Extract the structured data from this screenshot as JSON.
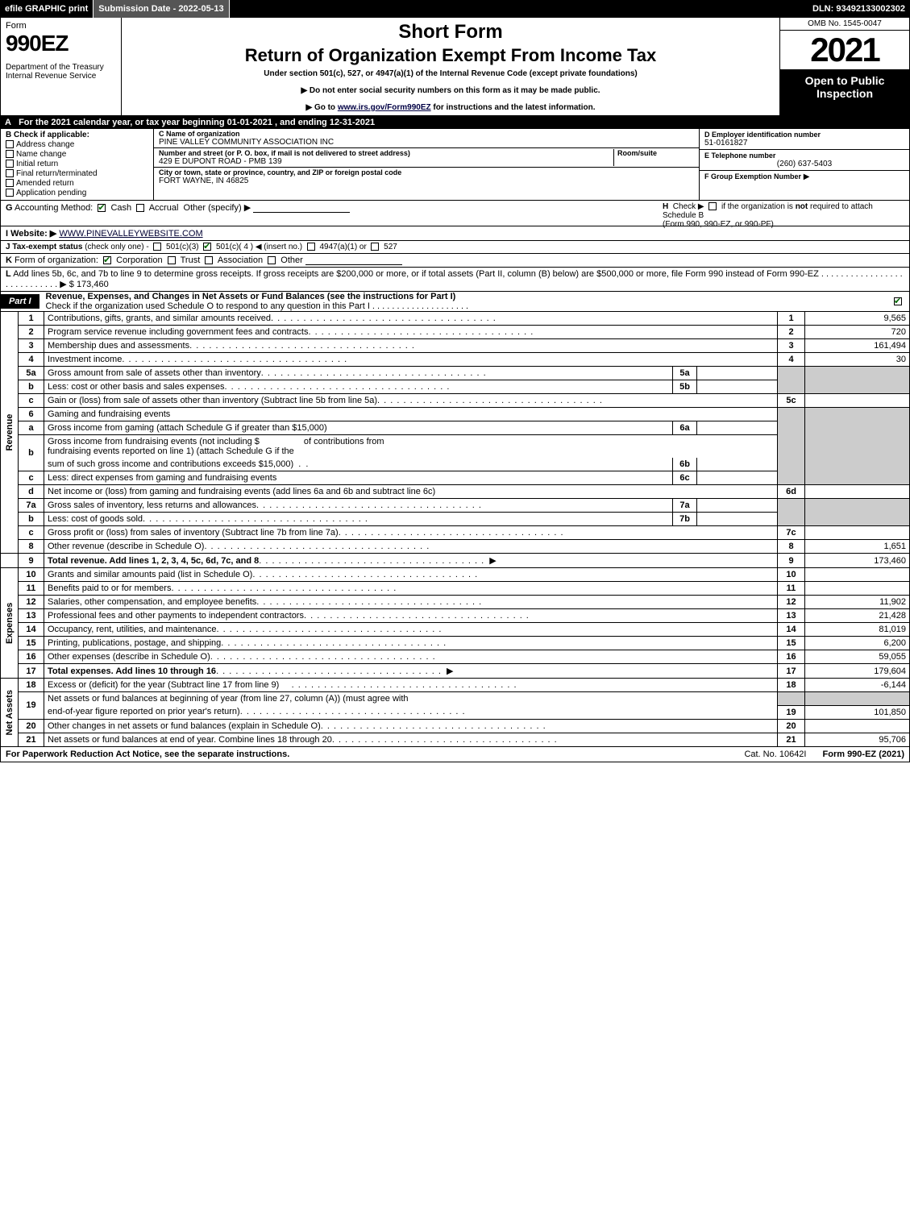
{
  "topbar": {
    "efile": "efile GRAPHIC print",
    "submission_label": "Submission Date - 2022-05-13",
    "dln": "DLN: 93492133002302"
  },
  "header": {
    "form_word": "Form",
    "form_number": "990EZ",
    "department": "Department of the Treasury\nInternal Revenue Service",
    "short_form": "Short Form",
    "return_title": "Return of Organization Exempt From Income Tax",
    "under_section": "Under section 501(c), 527, or 4947(a)(1) of the Internal Revenue Code (except private foundations)",
    "note1_prefix": "▶ Do not enter social security numbers on this form as it may be made public.",
    "note2_prefix": "▶ Go to ",
    "note2_link": "www.irs.gov/Form990EZ",
    "note2_suffix": " for instructions and the latest information.",
    "omb": "OMB No. 1545-0047",
    "year": "2021",
    "open": "Open to Public Inspection"
  },
  "rowA": {
    "label": "A",
    "text": "For the 2021 calendar year, or tax year beginning 01-01-2021 , and ending 12-31-2021"
  },
  "sectionB": {
    "label": "B",
    "heading": "Check if applicable:",
    "items": [
      {
        "label": "Address change",
        "checked": false
      },
      {
        "label": "Name change",
        "checked": false
      },
      {
        "label": "Initial return",
        "checked": false
      },
      {
        "label": "Final return/terminated",
        "checked": false
      },
      {
        "label": "Amended return",
        "checked": false
      },
      {
        "label": "Application pending",
        "checked": false
      }
    ]
  },
  "sectionC": {
    "name_label": "C Name of organization",
    "name_value": "PINE VALLEY COMMUNITY ASSOCIATION INC",
    "addr_label": "Number and street (or P. O. box, if mail is not delivered to street address)",
    "room_label": "Room/suite",
    "addr_value": "429 E DUPONT ROAD - PMB 139",
    "city_label": "City or town, state or province, country, and ZIP or foreign postal code",
    "city_value": "FORT WAYNE, IN  46825"
  },
  "sectionD": {
    "label": "D Employer identification number",
    "value": "51-0161827"
  },
  "sectionE": {
    "label": "E Telephone number",
    "value": "(260) 637-5403"
  },
  "sectionF": {
    "label": "F Group Exemption Number",
    "arrow": "▶"
  },
  "rowG": {
    "label": "G",
    "text": "Accounting Method:",
    "cash": "Cash",
    "accrual": "Accrual",
    "other": "Other (specify) ▶"
  },
  "rowH": {
    "label": "H",
    "text1": "Check ▶",
    "text2": "if the organization is ",
    "text2b": "not",
    "text3": " required to attach Schedule B",
    "text4": "(Form 990, 990-EZ, or 990-PF)."
  },
  "rowI": {
    "label": "I Website: ▶",
    "value": "WWW.PINEVALLEYWEBSITE.COM"
  },
  "rowJ": {
    "label": "J Tax-exempt status",
    "note": "(check only one) -",
    "opt1": "501(c)(3)",
    "opt2": "501(c)( 4 ) ◀ (insert no.)",
    "opt3": "4947(a)(1) or",
    "opt4": "527"
  },
  "rowK": {
    "label": "K",
    "text": "Form of organization:",
    "opts": [
      "Corporation",
      "Trust",
      "Association",
      "Other"
    ],
    "checked_index": 0
  },
  "rowL": {
    "label": "L",
    "text": "Add lines 5b, 6c, and 7b to line 9 to determine gross receipts. If gross receipts are $200,000 or more, or if total assets (Part II, column (B) below) are $500,000 or more, file Form 990 instead of Form 990-EZ .  .  .  .  .  .  .  .  .  .  .  .  .  .  .  .  .  .  .  .  .  .  .  .  .  .  .  .  ▶ $",
    "value": "173,460"
  },
  "part1": {
    "tab": "Part I",
    "title": "Revenue, Expenses, and Changes in Net Assets or Fund Balances (see the instructions for Part I)",
    "subtitle": "Check if the organization used Schedule O to respond to any question in this Part I .  .  .  .  .  .  .  .  .  .  .  .  .  .  .  .  .  .  .  .",
    "sub_checked": true
  },
  "sections": {
    "revenue_label": "Revenue",
    "expenses_label": "Expenses",
    "netassets_label": "Net Assets"
  },
  "lines": {
    "l1": {
      "n": "1",
      "desc": "Contributions, gifts, grants, and similar amounts received",
      "rn": "1",
      "val": "9,565"
    },
    "l2": {
      "n": "2",
      "desc": "Program service revenue including government fees and contracts",
      "rn": "2",
      "val": "720"
    },
    "l3": {
      "n": "3",
      "desc": "Membership dues and assessments",
      "rn": "3",
      "val": "161,494"
    },
    "l4": {
      "n": "4",
      "desc": "Investment income",
      "rn": "4",
      "val": "30"
    },
    "l5a": {
      "n": "5a",
      "desc": "Gross amount from sale of assets other than inventory",
      "sub": "5a",
      "subval": ""
    },
    "l5b": {
      "n": "b",
      "desc": "Less: cost or other basis and sales expenses",
      "sub": "5b",
      "subval": ""
    },
    "l5c": {
      "n": "c",
      "desc": "Gain or (loss) from sale of assets other than inventory (Subtract line 5b from line 5a)",
      "rn": "5c",
      "val": ""
    },
    "l6": {
      "n": "6",
      "desc": "Gaming and fundraising events"
    },
    "l6a": {
      "n": "a",
      "desc": "Gross income from gaming (attach Schedule G if greater than $15,000)",
      "sub": "6a",
      "subval": ""
    },
    "l6b": {
      "n": "b",
      "desc_pre": "Gross income from fundraising events (not including $",
      "desc_mid": "of contributions from",
      "desc2": "fundraising events reported on line 1) (attach Schedule G if the",
      "desc3": "sum of such gross income and contributions exceeds $15,000)",
      "sub": "6b",
      "subval": ""
    },
    "l6c": {
      "n": "c",
      "desc": "Less: direct expenses from gaming and fundraising events",
      "sub": "6c",
      "subval": ""
    },
    "l6d": {
      "n": "d",
      "desc": "Net income or (loss) from gaming and fundraising events (add lines 6a and 6b and subtract line 6c)",
      "rn": "6d",
      "val": ""
    },
    "l7a": {
      "n": "7a",
      "desc": "Gross sales of inventory, less returns and allowances",
      "sub": "7a",
      "subval": ""
    },
    "l7b": {
      "n": "b",
      "desc": "Less: cost of goods sold",
      "sub": "7b",
      "subval": ""
    },
    "l7c": {
      "n": "c",
      "desc": "Gross profit or (loss) from sales of inventory (Subtract line 7b from line 7a)",
      "rn": "7c",
      "val": ""
    },
    "l8": {
      "n": "8",
      "desc": "Other revenue (describe in Schedule O)",
      "rn": "8",
      "val": "1,651"
    },
    "l9": {
      "n": "9",
      "desc": "Total revenue. Add lines 1, 2, 3, 4, 5c, 6d, 7c, and 8",
      "rn": "9",
      "val": "173,460",
      "arrow": true,
      "bold": true
    },
    "l10": {
      "n": "10",
      "desc": "Grants and similar amounts paid (list in Schedule O)",
      "rn": "10",
      "val": ""
    },
    "l11": {
      "n": "11",
      "desc": "Benefits paid to or for members",
      "rn": "11",
      "val": ""
    },
    "l12": {
      "n": "12",
      "desc": "Salaries, other compensation, and employee benefits",
      "rn": "12",
      "val": "11,902"
    },
    "l13": {
      "n": "13",
      "desc": "Professional fees and other payments to independent contractors",
      "rn": "13",
      "val": "21,428"
    },
    "l14": {
      "n": "14",
      "desc": "Occupancy, rent, utilities, and maintenance",
      "rn": "14",
      "val": "81,019"
    },
    "l15": {
      "n": "15",
      "desc": "Printing, publications, postage, and shipping",
      "rn": "15",
      "val": "6,200"
    },
    "l16": {
      "n": "16",
      "desc": "Other expenses (describe in Schedule O)",
      "rn": "16",
      "val": "59,055"
    },
    "l17": {
      "n": "17",
      "desc": "Total expenses. Add lines 10 through 16",
      "rn": "17",
      "val": "179,604",
      "arrow": true,
      "bold": true
    },
    "l18": {
      "n": "18",
      "desc": "Excess or (deficit) for the year (Subtract line 17 from line 9)",
      "rn": "18",
      "val": "-6,144"
    },
    "l19": {
      "n": "19",
      "desc": "Net assets or fund balances at beginning of year (from line 27, column (A)) (must agree with",
      "desc2": "end-of-year figure reported on prior year's return)",
      "rn": "19",
      "val": "101,850"
    },
    "l20": {
      "n": "20",
      "desc": "Other changes in net assets or fund balances (explain in Schedule O)",
      "rn": "20",
      "val": ""
    },
    "l21": {
      "n": "21",
      "desc": "Net assets or fund balances at end of year. Combine lines 18 through 20",
      "rn": "21",
      "val": "95,706"
    }
  },
  "footer": {
    "left": "For Paperwork Reduction Act Notice, see the separate instructions.",
    "mid": "Cat. No. 10642I",
    "right_pre": "Form ",
    "right_form": "990-EZ",
    "right_suf": " (2021)"
  },
  "colors": {
    "black": "#000000",
    "white": "#ffffff",
    "grey": "#cccccc",
    "darkgrey": "#555555",
    "checkgreen": "#006600"
  }
}
